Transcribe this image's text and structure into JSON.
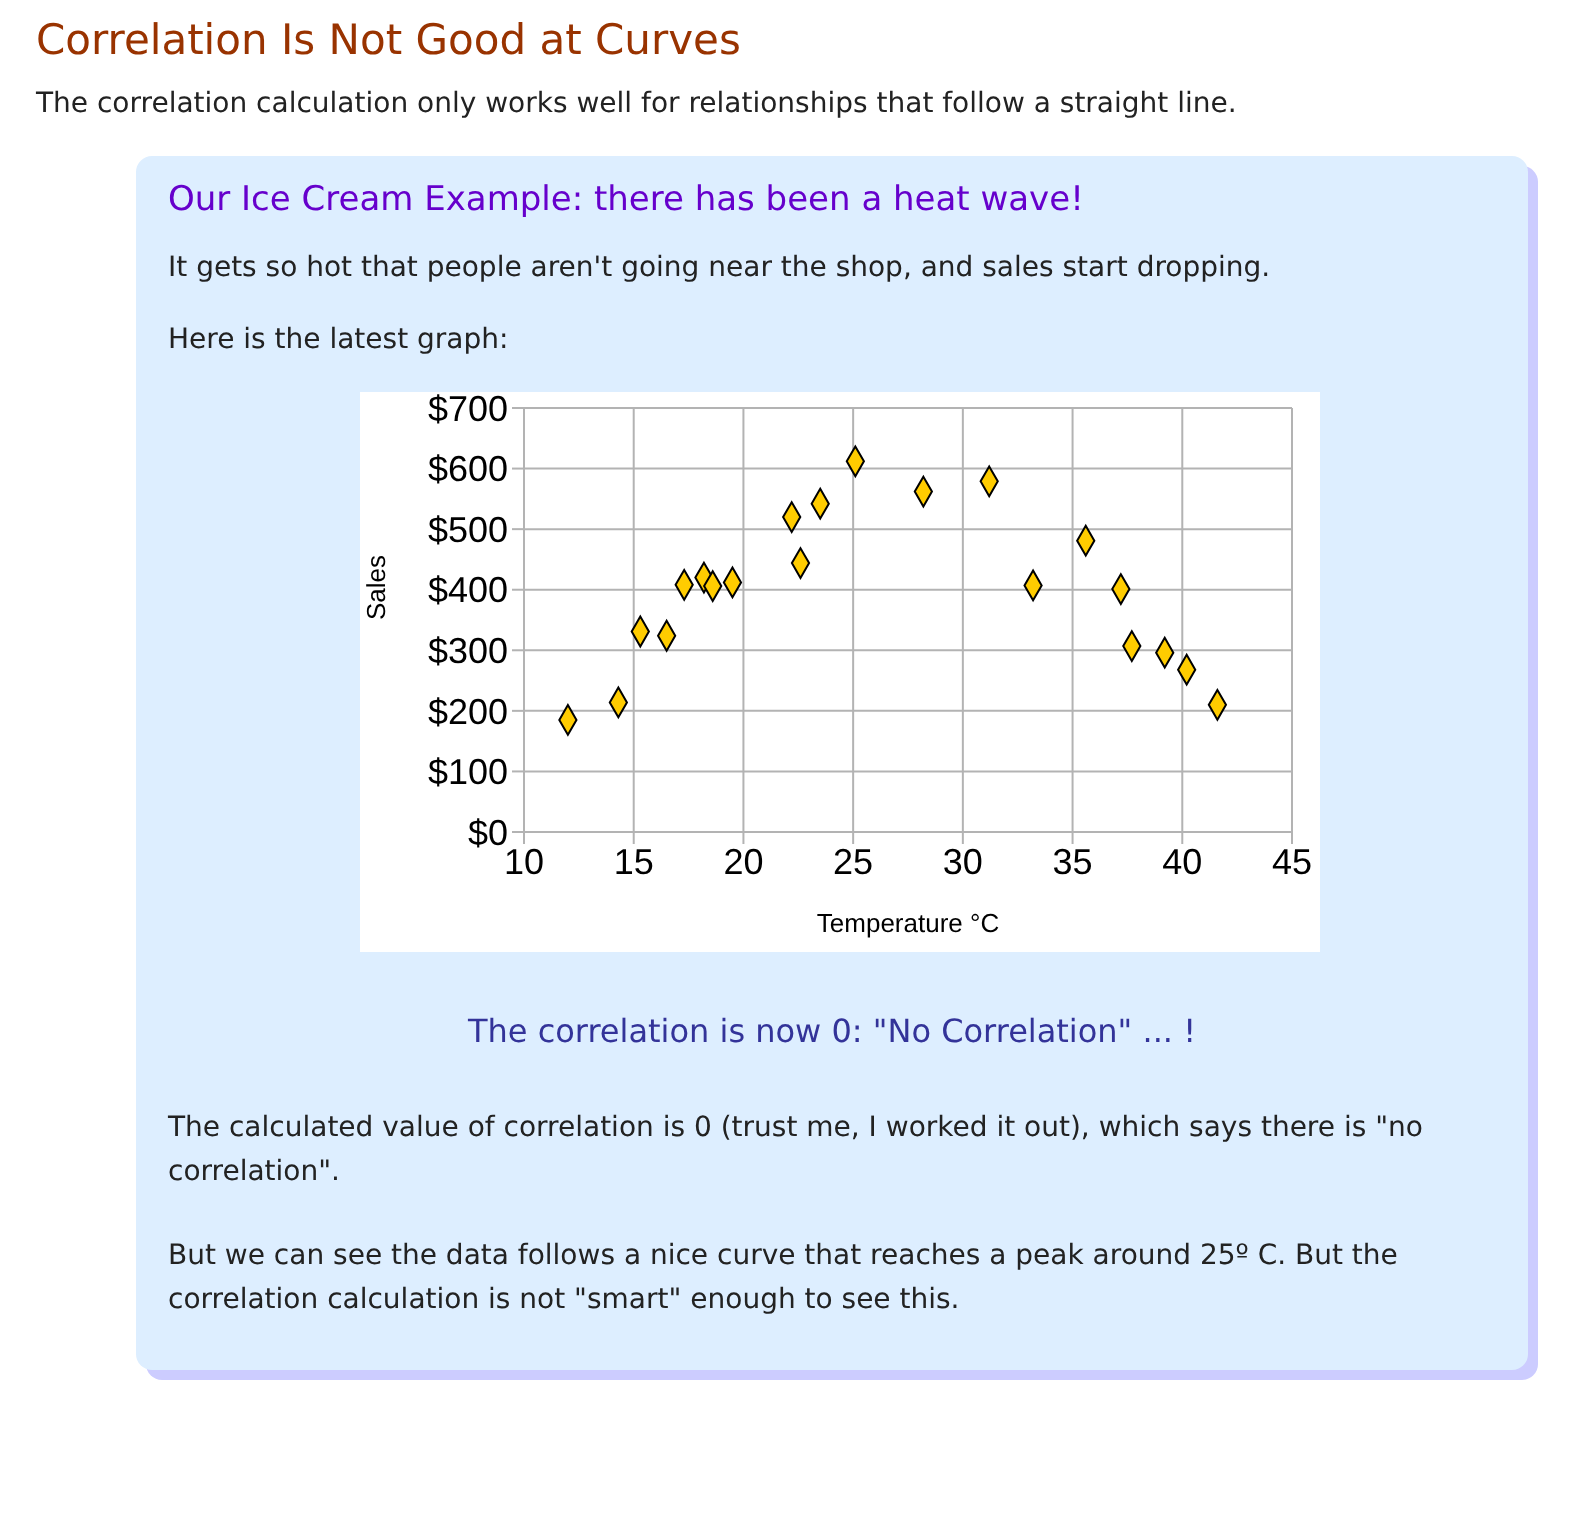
{
  "chart_data": {
    "type": "scatter",
    "title": "Correlation Is Not Good at Curves",
    "subtitle": "The correlation calculation only works well for relationships that follow a straight line.",
    "annotations": [
      "Our Ice Cream Example: there has been a heat wave!",
      "It gets so hot that people aren't going near the shop, and sales start dropping.",
      "Here is the latest graph:",
      "The correlation is now 0: \"No Correlation\" ... !",
      "The calculated value of correlation is 0 (trust me, I worked it out), which says there is \"no correlation\".",
      "But we can see the data follows a nice curve that reaches a peak around 25º C. But the correlation calculation is not \"smart\" enough to see this."
    ],
    "xlabel": "Temperature °C",
    "ylabel": "Sales",
    "x": [
      12.0,
      14.3,
      15.3,
      16.5,
      17.3,
      18.2,
      18.6,
      19.5,
      22.2,
      22.6,
      23.5,
      25.1,
      28.2,
      31.2,
      33.2,
      35.6,
      37.2,
      37.7,
      39.2,
      40.2,
      41.6
    ],
    "series": [
      {
        "color": "#ffcc00",
        "values": [
          185,
          214,
          331,
          324,
          408,
          420,
          406,
          412,
          520,
          444,
          542,
          612,
          562,
          579,
          407,
          481,
          401,
          307,
          296,
          268,
          210
        ]
      }
    ],
    "xlim": [
      10,
      45
    ],
    "xticks": [
      10,
      15,
      20,
      25,
      30,
      35,
      40,
      45
    ],
    "ylim": [
      0,
      700
    ],
    "yticks": [
      {
        "value": 0,
        "label": "$0"
      },
      {
        "value": 100,
        "label": "$100"
      },
      {
        "value": 200,
        "label": "$200"
      },
      {
        "value": 300,
        "label": "$300"
      },
      {
        "value": 400,
        "label": "$400"
      },
      {
        "value": 500,
        "label": "$500"
      },
      {
        "value": 600,
        "label": "$600"
      },
      {
        "value": 700,
        "label": "$700"
      }
    ],
    "grid": true,
    "marker": "diamond",
    "legend": false
  }
}
